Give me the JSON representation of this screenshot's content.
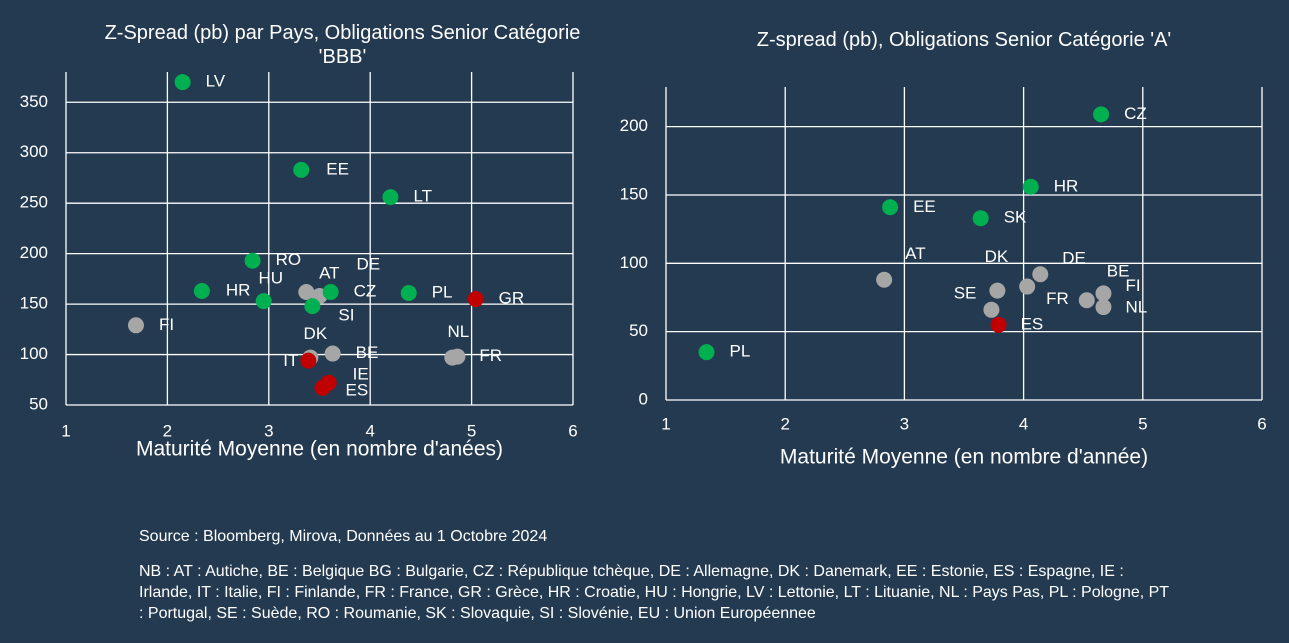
{
  "chart_data": [
    {
      "type": "scatter",
      "title": "Z-Spread (pb) par Pays, Obligations Senior Catégorie 'BBB'",
      "x_label": "Maturité Moyenne (en nombre d'anées)",
      "labels": [
        "LV",
        "EE",
        "LT",
        "RO",
        "HR",
        "HU",
        "FI",
        "AT",
        "DE",
        "CZ",
        "SI",
        "PL",
        "GR",
        "NL",
        "FR",
        "DK",
        "BE",
        "IT",
        "IE",
        "ES"
      ],
      "x": [
        2.15,
        3.32,
        4.2,
        2.84,
        2.34,
        2.95,
        1.69,
        3.37,
        3.5,
        3.61,
        3.43,
        4.38,
        5.04,
        4.81,
        4.86,
        3.41,
        3.63,
        3.39,
        3.59,
        3.53
      ],
      "values": [
        370,
        283,
        256,
        193,
        163,
        153,
        129,
        162,
        158,
        162,
        148,
        161,
        155,
        97,
        98,
        97,
        101,
        94,
        72,
        67
      ],
      "colors": [
        "#00b050",
        "#00b050",
        "#00b050",
        "#00b050",
        "#00b050",
        "#00b050",
        "#a6a6a6",
        "#a6a6a6",
        "#a6a6a6",
        "#00b050",
        "#00b050",
        "#00b050",
        "#c00000",
        "#a6a6a6",
        "#a6a6a6",
        "#a6a6a6",
        "#a6a6a6",
        "#c00000",
        "#c00000",
        "#c00000"
      ],
      "xlim": [
        1,
        6
      ],
      "xticks": [
        1,
        2,
        3,
        4,
        5,
        6
      ],
      "ylim": [
        50,
        380
      ],
      "yticks": [
        50,
        100,
        150,
        200,
        250,
        300,
        350
      ],
      "grid": true
    },
    {
      "type": "scatter",
      "title": "Z-spread (pb), Obligations Senior Catégorie 'A'",
      "x_label": "Maturité Moyenne (en nombre d'année)",
      "labels": [
        "CZ",
        "HR",
        "EE",
        "SK",
        "AT",
        "DK",
        "DE",
        "FR",
        "SE",
        "BE",
        "FI",
        "NL",
        "ES",
        "PL"
      ],
      "x": [
        4.65,
        4.06,
        2.88,
        3.64,
        2.83,
        3.78,
        4.14,
        4.03,
        3.73,
        4.53,
        4.67,
        4.67,
        3.79,
        1.34
      ],
      "values": [
        209,
        156,
        141,
        133,
        88,
        80,
        92,
        83,
        66,
        73,
        78,
        68,
        55,
        35
      ],
      "colors": [
        "#00b050",
        "#00b050",
        "#00b050",
        "#00b050",
        "#a6a6a6",
        "#a6a6a6",
        "#a6a6a6",
        "#a6a6a6",
        "#a6a6a6",
        "#a6a6a6",
        "#a6a6a6",
        "#a6a6a6",
        "#c00000",
        "#00b050"
      ],
      "xlim": [
        1,
        6
      ],
      "xticks": [
        1,
        2,
        3,
        4,
        5,
        6
      ],
      "ylim": [
        0,
        229
      ],
      "yticks": [
        0,
        50,
        100,
        150,
        200
      ],
      "grid": true
    }
  ],
  "footer": {
    "source": "Source : Bloomberg, Mirova, Données au 1 Octobre 2024",
    "note": "NB : AT : Autiche, BE : Belgique BG : Bulgarie, CZ : République tchèque, DE : Allemagne, DK : Danemark, EE : Estonie, ES : Espagne, IE : Irlande, IT : Italie, FI : Finlande, FR : France, GR : Grèce, HR : Croatie, HU : Hongrie, LV : Lettonie, LT : Lituanie, NL : Pays Pas, PL : Pologne, PT : Portugal, SE : Suède, RO : Roumanie, SK : Slovaquie, SI : Slovénie, EU : Union Européennee"
  }
}
